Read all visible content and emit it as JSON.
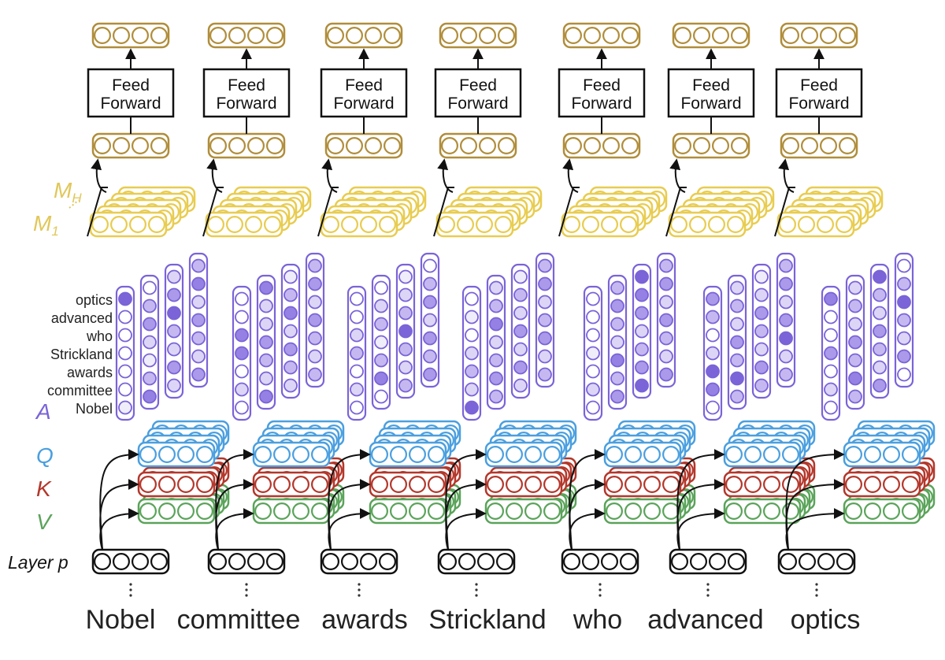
{
  "tokens": [
    "Nobel",
    "committee",
    "awards",
    "Strickland",
    "who",
    "advanced",
    "optics"
  ],
  "row_labels": [
    "optics",
    "advanced",
    "who",
    "Strickland",
    "awards",
    "committee",
    "Nobel"
  ],
  "ff": {
    "line1": "Feed",
    "line2": "Forward"
  },
  "symbols": {
    "A": "A",
    "Q": "Q",
    "K": "K",
    "V": "V",
    "M_H": "M",
    "M_H_sub": "H",
    "M_1": "M",
    "M_1_sub": "1"
  },
  "layer_label": "Layer p",
  "colors": {
    "gold": "#b08d3a",
    "yellow": "#e8cc4f",
    "purple": "#7b63d8",
    "blue": "#4a9fdf",
    "red": "#b3372b",
    "green": "#5aa35a",
    "black": "#111111"
  },
  "attention": [
    [
      [
        6,
        0,
        0,
        0,
        0,
        0,
        1
      ],
      [
        0,
        3,
        4,
        2,
        1,
        3,
        5
      ],
      [
        2,
        4,
        6,
        3,
        2,
        4,
        2
      ],
      [
        3,
        5,
        2,
        4,
        3,
        2,
        4
      ]
    ],
    [
      [
        0,
        0,
        5,
        5,
        0,
        2,
        0
      ],
      [
        5,
        2,
        2,
        4,
        3,
        2,
        5
      ],
      [
        1,
        3,
        5,
        2,
        4,
        3,
        2
      ],
      [
        3,
        4,
        2,
        4,
        3,
        2,
        3
      ]
    ],
    [
      [
        0,
        0,
        2,
        3,
        0,
        2,
        0
      ],
      [
        0,
        2,
        3,
        1,
        3,
        5,
        0
      ],
      [
        1,
        2,
        3,
        6,
        3,
        2,
        3
      ],
      [
        0,
        3,
        4,
        2,
        4,
        3,
        4
      ]
    ],
    [
      [
        0,
        1,
        0,
        2,
        3,
        2,
        6
      ],
      [
        2,
        3,
        5,
        2,
        3,
        4,
        3
      ],
      [
        1,
        3,
        2,
        4,
        2,
        4,
        2
      ],
      [
        3,
        4,
        2,
        3,
        4,
        2,
        3
      ]
    ],
    [
      [
        0,
        0,
        0,
        1,
        0,
        2,
        0
      ],
      [
        3,
        4,
        3,
        2,
        5,
        3,
        4
      ],
      [
        6,
        5,
        4,
        2,
        3,
        4,
        6
      ],
      [
        3,
        4,
        2,
        4,
        3,
        2,
        4
      ]
    ],
    [
      [
        4,
        3,
        0,
        2,
        6,
        5,
        0
      ],
      [
        2,
        3,
        2,
        4,
        3,
        6,
        3
      ],
      [
        1,
        2,
        4,
        3,
        2,
        4,
        3
      ],
      [
        3,
        4,
        2,
        4,
        6,
        2,
        3
      ]
    ],
    [
      [
        5,
        0,
        0,
        4,
        0,
        2,
        0
      ],
      [
        2,
        3,
        2,
        4,
        3,
        5,
        3
      ],
      [
        6,
        3,
        2,
        4,
        3,
        2,
        4
      ],
      [
        0,
        3,
        6,
        3,
        2,
        4,
        0
      ]
    ]
  ]
}
